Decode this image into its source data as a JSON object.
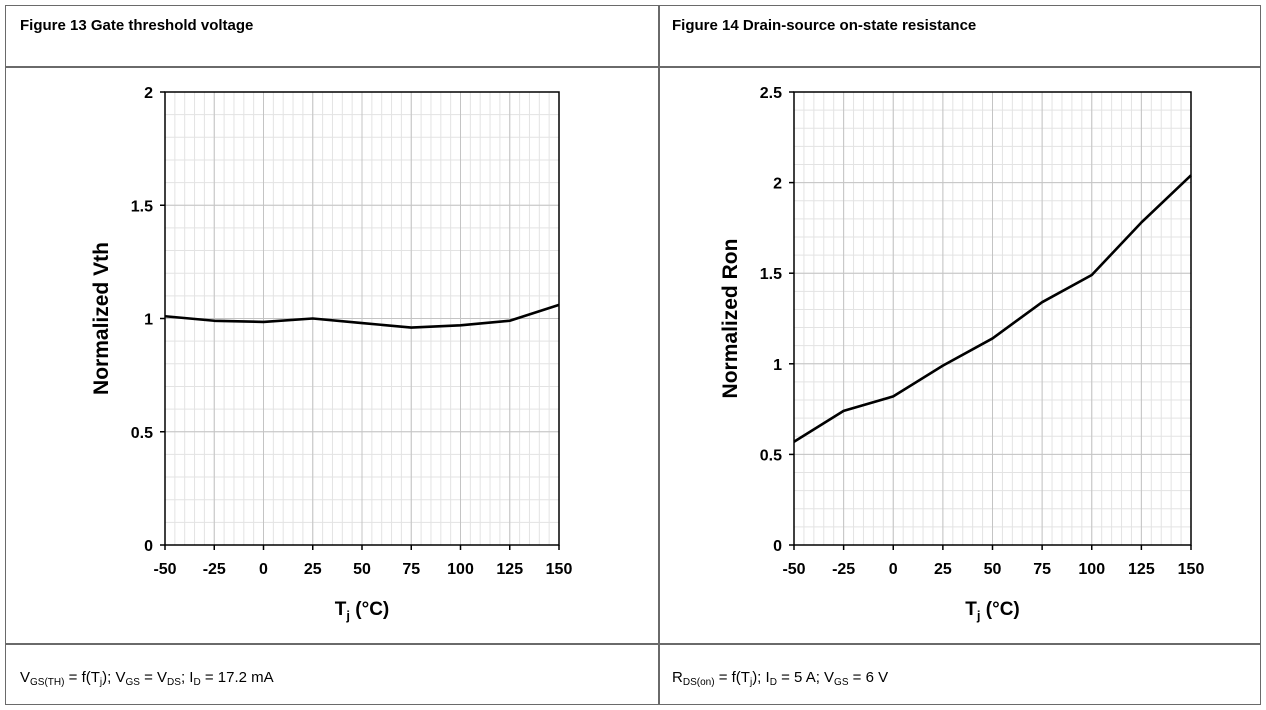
{
  "headers": {
    "left": "Figure 13 Gate threshold voltage",
    "right": "Figure 14 Drain-source on-state resistance"
  },
  "footers": {
    "left": {
      "p1": "V",
      "s1": "GS(TH)",
      "p2": " = f(T",
      "s2": "j",
      "p3": "); V",
      "s3": "GS",
      "p4": " = V",
      "s4": "DS",
      "p5": "; I",
      "s5": "D",
      "p6": " = 17.2 mA"
    },
    "right": {
      "p1": "R",
      "s1": "DS(on)",
      "p2": " = f(T",
      "s2": "j",
      "p3": "); I",
      "s3": "D",
      "p4": " = 5 A; V",
      "s4": "GS",
      "p5": " = 6 V"
    }
  },
  "chart_data": [
    {
      "type": "line",
      "title": "Figure 13 Gate threshold voltage",
      "xlabel_main": "T",
      "xlabel_sub": "j",
      "xlabel_rest": " (°C)",
      "ylabel": "Normalized Vth",
      "xlim": [
        -50,
        150
      ],
      "ylim": [
        0,
        2
      ],
      "xticks": [
        -50,
        -25,
        0,
        25,
        50,
        75,
        100,
        125,
        150
      ],
      "xtick_labels": [
        "-50",
        "-25",
        "0",
        "25",
        "50",
        "75",
        "100",
        "125",
        "150"
      ],
      "yticks": [
        0,
        0.5,
        1,
        1.5,
        2
      ],
      "ytick_labels": [
        "0",
        "0.5",
        "1",
        "1.5",
        "2"
      ],
      "grid": true,
      "series": [
        {
          "x": [
            -50,
            -25,
            0,
            25,
            50,
            75,
            100,
            125,
            150
          ],
          "y": [
            1.01,
            0.99,
            0.985,
            1.0,
            0.98,
            0.96,
            0.97,
            0.99,
            1.06
          ]
        }
      ]
    },
    {
      "type": "line",
      "title": "Figure 14 Drain-source on-state resistance",
      "xlabel_main": "T",
      "xlabel_sub": "j",
      "xlabel_rest": " (°C)",
      "ylabel": "Normalized Ron",
      "xlim": [
        -50,
        150
      ],
      "ylim": [
        0,
        2.5
      ],
      "xticks": [
        -50,
        -25,
        0,
        25,
        50,
        75,
        100,
        125,
        150
      ],
      "xtick_labels": [
        "-50",
        "-25",
        "0",
        "25",
        "50",
        "75",
        "100",
        "125",
        "150"
      ],
      "yticks": [
        0,
        0.5,
        1,
        1.5,
        2,
        2.5
      ],
      "ytick_labels": [
        "0",
        "0.5",
        "1",
        "1.5",
        "2",
        "2.5"
      ],
      "grid": true,
      "series": [
        {
          "x": [
            -50,
            -25,
            0,
            25,
            50,
            75,
            100,
            125,
            150
          ],
          "y": [
            0.57,
            0.74,
            0.82,
            0.99,
            1.14,
            1.34,
            1.49,
            1.78,
            2.04
          ]
        }
      ]
    }
  ]
}
